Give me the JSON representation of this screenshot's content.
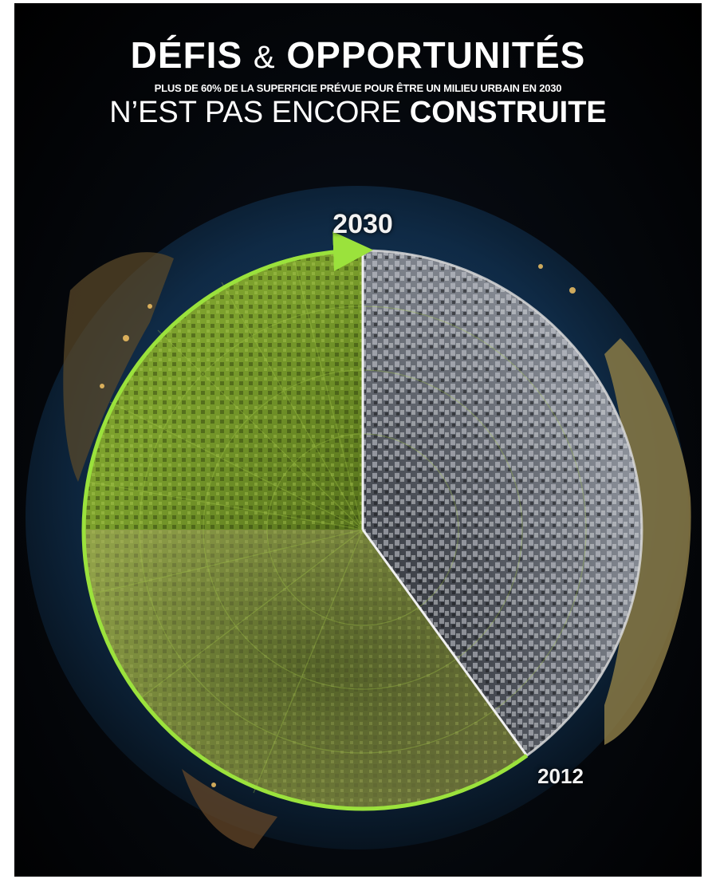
{
  "title": {
    "part1": "DÉFIS",
    "amp": "&",
    "part2": "OPPORTUNITÉS"
  },
  "subtitle": {
    "before": "PLUS DE ",
    "highlight": "60%",
    "after": " DE LA SUPERFICIE PRÉVUE POUR ÊTRE UN MILIEU URBAIN EN 2030"
  },
  "headline": {
    "thin": "N’EST PAS ENCORE ",
    "bold": "CONSTRUITE"
  },
  "chart_data": {
    "type": "pie",
    "labels": {
      "start": "2030",
      "end": "2012"
    },
    "share_not_built_percent": 60,
    "colors": {
      "future_green": "#6f8a2a",
      "built_gray": "#5b5f66",
      "arrow": "#9be23c",
      "ocean": "#16324f"
    }
  }
}
